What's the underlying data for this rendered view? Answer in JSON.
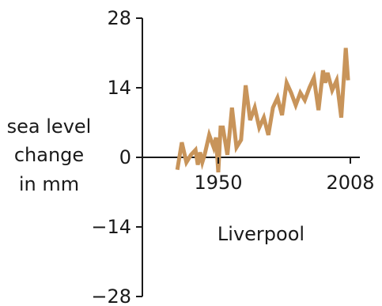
{
  "chart_data": {
    "type": "line",
    "title": "",
    "annotation": "Liverpool",
    "ylabel": [
      "sea level",
      "change",
      "in mm"
    ],
    "xlabel": "",
    "ylim": [
      -28,
      28
    ],
    "xlim": [
      1916,
      2010
    ],
    "yticks": [
      28,
      14,
      0,
      -14,
      -28
    ],
    "ytick_labels": [
      "28",
      "14",
      "0",
      "−14",
      "−28"
    ],
    "xticks": [
      1950,
      2008
    ],
    "xtick_labels": [
      "1950",
      "2008"
    ],
    "grid": false,
    "legend": "none",
    "color": "#c8945a",
    "series": [
      {
        "x": [
          1932,
          1934,
          1936,
          1938,
          1940,
          1941,
          1942,
          1943,
          1944,
          1946,
          1948,
          1949,
          1950,
          1951,
          1952,
          1954,
          1955,
          1956,
          1958,
          1960,
          1962,
          1964,
          1966,
          1968,
          1970,
          1972,
          1974,
          1976,
          1978,
          1980,
          1982,
          1984,
          1986,
          1988,
          1990,
          1992,
          1994,
          1996,
          1997,
          1998,
          2000,
          2002,
          2004,
          2006,
          2007
        ],
        "y": [
          -2.5,
          3.0,
          -1.0,
          0.5,
          1.5,
          -1.5,
          1.0,
          -1.0,
          0.5,
          4.5,
          2.0,
          4.0,
          -3.0,
          6.0,
          6.0,
          0.5,
          5.0,
          10.0,
          2.0,
          3.5,
          14.5,
          7.5,
          10.0,
          6.0,
          8.0,
          4.5,
          10.0,
          12.0,
          8.5,
          15.0,
          13.0,
          10.5,
          13.0,
          11.5,
          14.0,
          16.0,
          9.5,
          17.5,
          15.0,
          17.0,
          13.5,
          15.5,
          8.0,
          22.0,
          15.5
        ]
      }
    ]
  }
}
